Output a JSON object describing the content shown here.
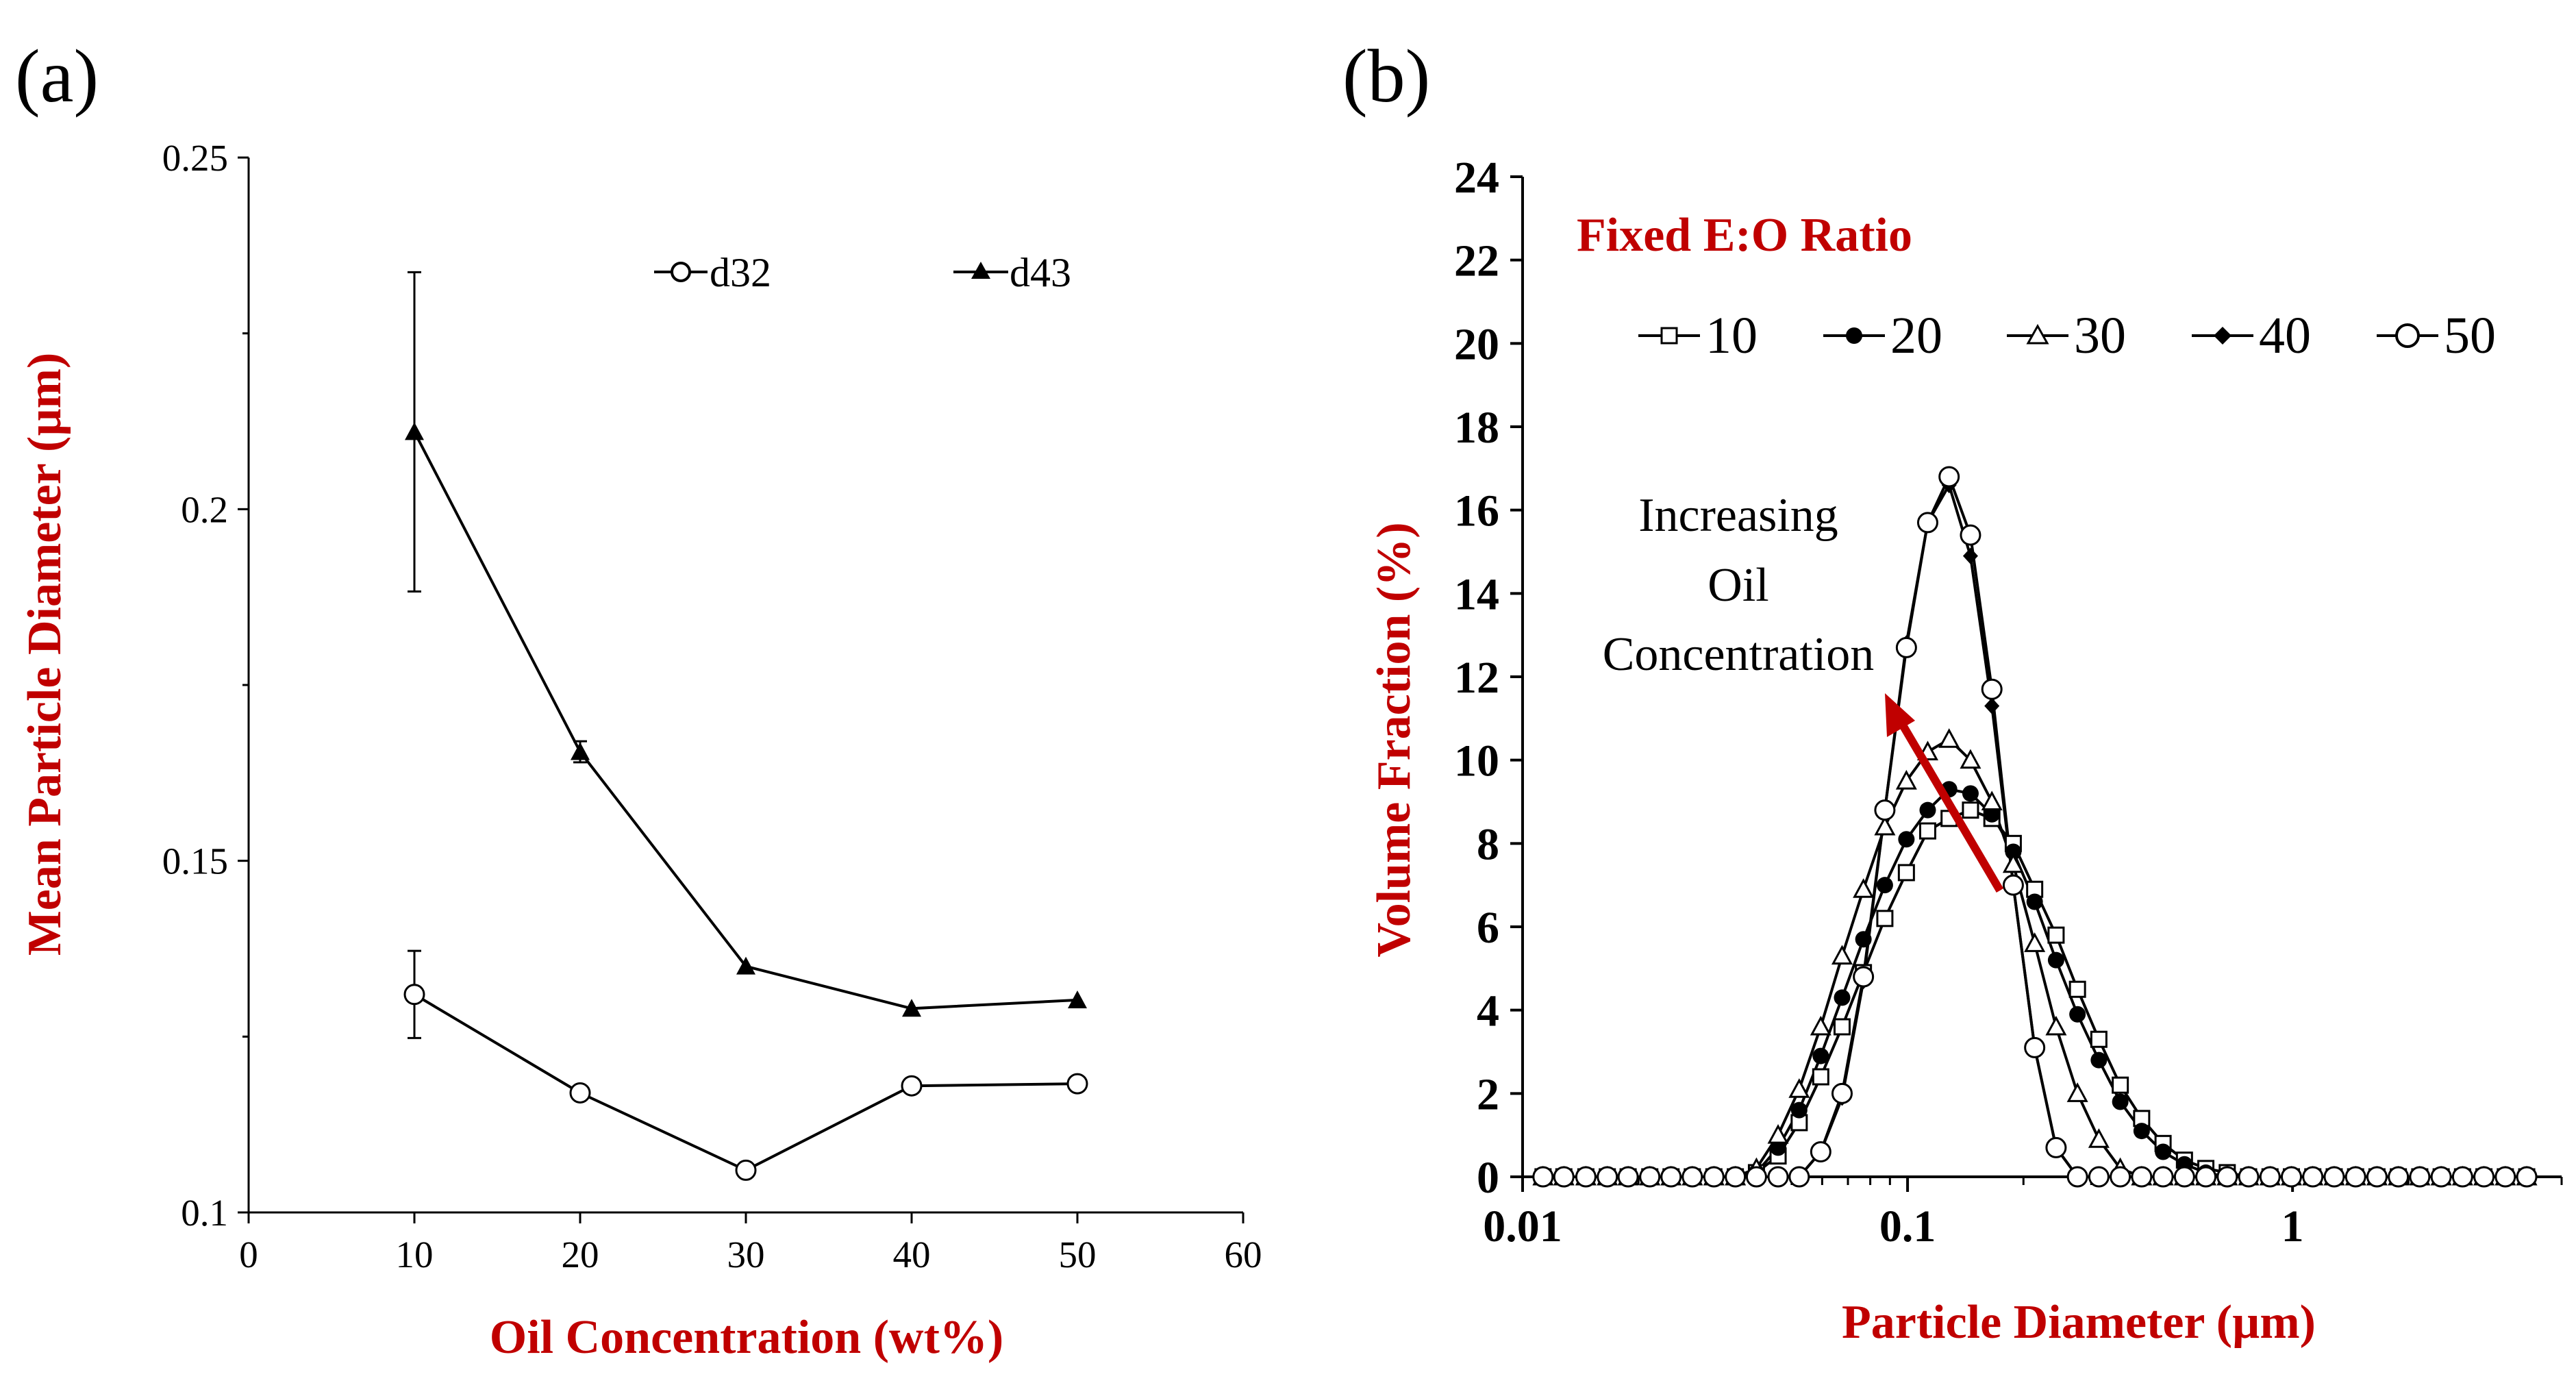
{
  "colors": {
    "accent": "#c00000",
    "ink": "#000000"
  },
  "chart_data": [
    {
      "panel_label": "(a)",
      "type": "line",
      "title": "",
      "xlabel": "Oil Concentration (wt%)",
      "ylabel": "Mean Particle Diameter (µm)",
      "xlim": [
        0,
        60
      ],
      "ylim": [
        0.1,
        0.25
      ],
      "x_ticks": [
        0,
        10,
        20,
        30,
        40,
        50,
        60
      ],
      "x_tick_labels": [
        "0",
        "10",
        "20",
        "30",
        "40",
        "50",
        "60"
      ],
      "y_ticks": [
        0.1,
        0.15,
        0.2,
        0.25
      ],
      "y_tick_labels": [
        "0.1",
        "0.15",
        "0.2",
        "0.25"
      ],
      "grid": false,
      "legend_position": "top-right",
      "series": [
        {
          "name": "d32",
          "marker": "open-circle",
          "x": [
            10,
            20,
            30,
            40,
            50
          ],
          "values": [
            0.131,
            0.117,
            0.106,
            0.118,
            0.1183
          ],
          "errors": [
            0.0062,
            0,
            0,
            0,
            0
          ]
        },
        {
          "name": "d43",
          "marker": "filled-triangle",
          "x": [
            10,
            20,
            30,
            40,
            50
          ],
          "values": [
            0.211,
            0.1655,
            0.135,
            0.129,
            0.1302
          ],
          "errors": [
            0.0227,
            0.0015,
            0,
            0,
            0
          ]
        }
      ]
    },
    {
      "panel_label": "(b)",
      "type": "line",
      "title": "Fixed E:O Ratio",
      "xlabel": "Particle Diameter (µm)",
      "ylabel": "Volume Fraction (%)",
      "xscale": "log",
      "xlim": [
        0.01,
        5
      ],
      "ylim": [
        0,
        24
      ],
      "x_ticks": [
        0.01,
        0.1,
        1
      ],
      "x_tick_labels": [
        "0.01",
        "0.1",
        "1"
      ],
      "y_ticks": [
        0,
        2,
        4,
        6,
        8,
        10,
        12,
        14,
        16,
        18,
        20,
        22,
        24
      ],
      "y_tick_labels": [
        "0",
        "2",
        "4",
        "6",
        "8",
        "10",
        "12",
        "14",
        "16",
        "18",
        "20",
        "22",
        "24"
      ],
      "grid": false,
      "legend_position": "top",
      "annotation": {
        "lines": [
          "Increasing",
          "Oil",
          "Concentration"
        ],
        "arrow": "up-left"
      },
      "x": [
        0.0113,
        0.0128,
        0.0146,
        0.0166,
        0.0188,
        0.0214,
        0.0243,
        0.0276,
        0.0314,
        0.0357,
        0.0405,
        0.0461,
        0.0523,
        0.0595,
        0.0676,
        0.0768,
        0.0873,
        0.0993,
        0.1128,
        0.1282,
        0.1457,
        0.1656,
        0.1882,
        0.2139,
        0.2431,
        0.2763,
        0.314,
        0.3569,
        0.4056,
        0.461,
        0.5239,
        0.5954,
        0.6767,
        0.7691,
        0.874,
        0.9933,
        1.1289,
        1.283,
        1.4581,
        1.6571,
        1.8833,
        2.1404,
        2.4325,
        2.7646,
        3.142,
        3.5708,
        4.0582
      ],
      "series": [
        {
          "name": "10",
          "marker": "open-square",
          "values": [
            0,
            0,
            0,
            0,
            0,
            0,
            0,
            0,
            0,
            0,
            0.1,
            0.5,
            1.3,
            2.4,
            3.6,
            4.9,
            6.2,
            7.3,
            8.3,
            8.6,
            8.8,
            8.6,
            8.0,
            6.9,
            5.8,
            4.5,
            3.3,
            2.2,
            1.4,
            0.8,
            0.4,
            0.2,
            0.1,
            0,
            0,
            0,
            0,
            0,
            0,
            0,
            0,
            0,
            0,
            0,
            0,
            0,
            0
          ]
        },
        {
          "name": "20",
          "marker": "filled-circle",
          "values": [
            0,
            0,
            0,
            0,
            0,
            0,
            0,
            0,
            0,
            0,
            0.1,
            0.7,
            1.6,
            2.9,
            4.3,
            5.7,
            7.0,
            8.1,
            8.8,
            9.3,
            9.2,
            8.7,
            7.8,
            6.6,
            5.2,
            3.9,
            2.8,
            1.8,
            1.1,
            0.6,
            0.3,
            0.1,
            0,
            0,
            0,
            0,
            0,
            0,
            0,
            0,
            0,
            0,
            0,
            0,
            0,
            0,
            0
          ]
        },
        {
          "name": "30",
          "marker": "open-triangle",
          "values": [
            0,
            0,
            0,
            0,
            0,
            0,
            0,
            0,
            0,
            0,
            0.2,
            1.0,
            2.1,
            3.6,
            5.3,
            6.9,
            8.4,
            9.5,
            10.2,
            10.5,
            10.0,
            9.0,
            7.5,
            5.6,
            3.6,
            2.0,
            0.9,
            0.2,
            0,
            0,
            0,
            0,
            0,
            0,
            0,
            0,
            0,
            0,
            0,
            0,
            0,
            0,
            0,
            0,
            0,
            0,
            0
          ]
        },
        {
          "name": "40",
          "marker": "filled-diamond",
          "values": [
            0,
            0,
            0,
            0,
            0,
            0,
            0,
            0,
            0,
            0,
            0,
            0,
            0,
            0.6,
            1.9,
            4.7,
            8.8,
            12.8,
            15.7,
            16.6,
            14.9,
            11.3,
            7.0,
            3.1,
            0.7,
            0,
            0,
            0,
            0,
            0,
            0,
            0,
            0,
            0,
            0,
            0,
            0,
            0,
            0,
            0,
            0,
            0,
            0,
            0,
            0,
            0,
            0
          ]
        },
        {
          "name": "50",
          "marker": "open-circle",
          "values": [
            0,
            0,
            0,
            0,
            0,
            0,
            0,
            0,
            0,
            0,
            0,
            0,
            0,
            0.6,
            2.0,
            4.8,
            8.8,
            12.7,
            15.7,
            16.8,
            15.4,
            11.7,
            7.0,
            3.1,
            0.7,
            0,
            0,
            0,
            0,
            0,
            0,
            0,
            0,
            0,
            0,
            0,
            0,
            0,
            0,
            0,
            0,
            0,
            0,
            0,
            0,
            0,
            0
          ]
        }
      ]
    }
  ]
}
